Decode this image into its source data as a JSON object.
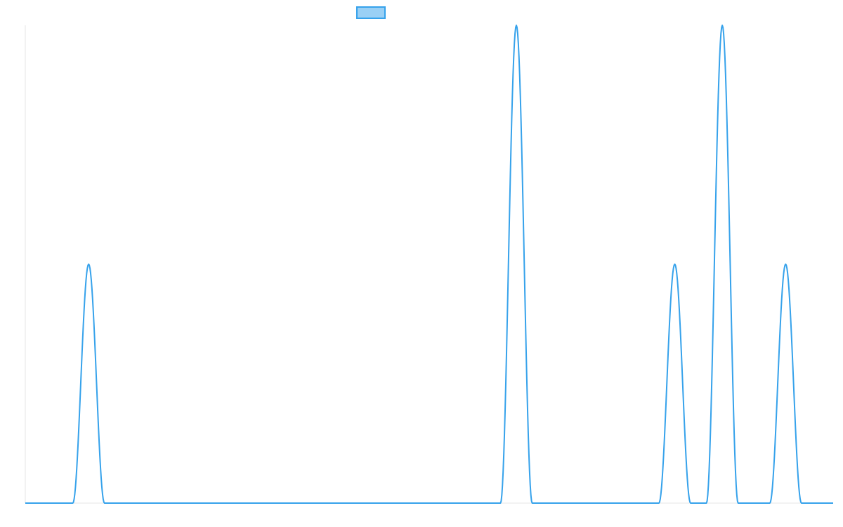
{
  "chart_data": {
    "type": "line",
    "title": "",
    "xlabel": "",
    "ylabel": "",
    "grid": false,
    "legend": {
      "position": "top-center",
      "entries": [
        {
          "label": "",
          "color": "#36a2eb",
          "fill": "#9ad0f5"
        }
      ]
    },
    "xlim": [
      0,
      51
    ],
    "ylim": [
      0,
      1
    ],
    "series": [
      {
        "color": "#36a2eb",
        "fill": "none",
        "points": [
          {
            "x": 0,
            "y": 0
          },
          {
            "x": 1,
            "y": 0
          },
          {
            "x": 2,
            "y": 0
          },
          {
            "x": 3,
            "y": 0
          },
          {
            "x": 4,
            "y": 0.5
          },
          {
            "x": 5,
            "y": 0
          },
          {
            "x": 6,
            "y": 0
          },
          {
            "x": 7,
            "y": 0
          },
          {
            "x": 8,
            "y": 0
          },
          {
            "x": 9,
            "y": 0
          },
          {
            "x": 10,
            "y": 0
          },
          {
            "x": 11,
            "y": 0
          },
          {
            "x": 12,
            "y": 0
          },
          {
            "x": 13,
            "y": 0
          },
          {
            "x": 14,
            "y": 0
          },
          {
            "x": 15,
            "y": 0
          },
          {
            "x": 16,
            "y": 0
          },
          {
            "x": 17,
            "y": 0
          },
          {
            "x": 18,
            "y": 0
          },
          {
            "x": 19,
            "y": 0
          },
          {
            "x": 20,
            "y": 0
          },
          {
            "x": 21,
            "y": 0
          },
          {
            "x": 22,
            "y": 0
          },
          {
            "x": 23,
            "y": 0
          },
          {
            "x": 24,
            "y": 0
          },
          {
            "x": 25,
            "y": 0
          },
          {
            "x": 26,
            "y": 0
          },
          {
            "x": 27,
            "y": 0
          },
          {
            "x": 28,
            "y": 0
          },
          {
            "x": 29,
            "y": 0
          },
          {
            "x": 30,
            "y": 0
          },
          {
            "x": 31,
            "y": 1
          },
          {
            "x": 32,
            "y": 0
          },
          {
            "x": 33,
            "y": 0
          },
          {
            "x": 34,
            "y": 0
          },
          {
            "x": 35,
            "y": 0
          },
          {
            "x": 36,
            "y": 0
          },
          {
            "x": 37,
            "y": 0
          },
          {
            "x": 38,
            "y": 0
          },
          {
            "x": 39,
            "y": 0
          },
          {
            "x": 40,
            "y": 0
          },
          {
            "x": 41,
            "y": 0.5
          },
          {
            "x": 42,
            "y": 0
          },
          {
            "x": 43,
            "y": 0
          },
          {
            "x": 44,
            "y": 1
          },
          {
            "x": 45,
            "y": 0
          },
          {
            "x": 46,
            "y": 0
          },
          {
            "x": 47,
            "y": 0
          },
          {
            "x": 48,
            "y": 0.5
          },
          {
            "x": 49,
            "y": 0
          },
          {
            "x": 50,
            "y": 0
          },
          {
            "x": 51,
            "y": 0
          }
        ]
      }
    ]
  }
}
